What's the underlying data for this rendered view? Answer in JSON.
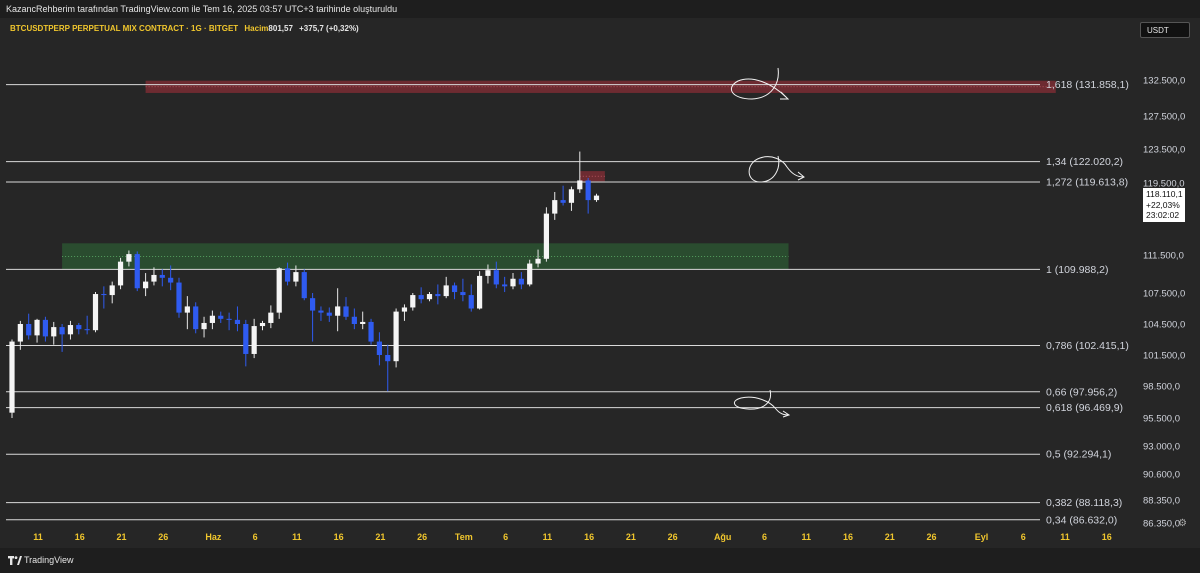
{
  "header": {
    "title": "KazancRehberim tarafından TradingView.com ile Tem 16, 2025 03:57 UTC+3 tarihinde oluşturuldu"
  },
  "legend": {
    "symbol": "BTCUSDTPERP PERPETUAL MIX CONTRACT · 1G · BITGET",
    "volume_label": "Hacim",
    "volume_value": "801,57",
    "change": "+375,7 (+0,32%)"
  },
  "currency": "USDT",
  "last_price": {
    "value": "118.110,1",
    "change_pct": "+22,03%",
    "countdown": "23:02:02"
  },
  "footer": {
    "brand": "TradingView"
  },
  "chart_data": {
    "type": "candlestick",
    "y_axis": {
      "ticks": [
        {
          "value": 132500,
          "label": "132.500,0"
        },
        {
          "value": 127500,
          "label": "127.500,0"
        },
        {
          "value": 123500,
          "label": "123.500,0"
        },
        {
          "value": 119500,
          "label": "119.500,0"
        },
        {
          "value": 111500,
          "label": "111.500,0"
        },
        {
          "value": 107500,
          "label": "107.500,0"
        },
        {
          "value": 104500,
          "label": "104.500,0"
        },
        {
          "value": 101500,
          "label": "101.500,0"
        },
        {
          "value": 98500,
          "label": "98.500,0"
        },
        {
          "value": 95500,
          "label": "95.500,0"
        },
        {
          "value": 93000,
          "label": "93.000,0"
        },
        {
          "value": 90600,
          "label": "90.600,0"
        },
        {
          "value": 88350,
          "label": "88.350,0"
        },
        {
          "value": 86350,
          "label": "86.350,0"
        }
      ]
    },
    "x_axis": {
      "ticks": [
        {
          "day": 0,
          "label": "11"
        },
        {
          "day": 5,
          "label": "16"
        },
        {
          "day": 10,
          "label": "21"
        },
        {
          "day": 15,
          "label": "26"
        },
        {
          "day": 21,
          "label": "Haz"
        },
        {
          "day": 26,
          "label": "6"
        },
        {
          "day": 31,
          "label": "11"
        },
        {
          "day": 36,
          "label": "16"
        },
        {
          "day": 41,
          "label": "21"
        },
        {
          "day": 46,
          "label": "26"
        },
        {
          "day": 51,
          "label": "Tem"
        },
        {
          "day": 56,
          "label": "6"
        },
        {
          "day": 61,
          "label": "11"
        },
        {
          "day": 66,
          "label": "16"
        },
        {
          "day": 71,
          "label": "21"
        },
        {
          "day": 76,
          "label": "26"
        },
        {
          "day": 82,
          "label": "Ağu"
        },
        {
          "day": 87,
          "label": "6"
        },
        {
          "day": 92,
          "label": "11"
        },
        {
          "day": 97,
          "label": "16"
        },
        {
          "day": 102,
          "label": "21"
        },
        {
          "day": 107,
          "label": "26"
        },
        {
          "day": 113,
          "label": "Eyl"
        },
        {
          "day": 118,
          "label": "6"
        },
        {
          "day": 123,
          "label": "11"
        },
        {
          "day": 128,
          "label": "16"
        }
      ]
    },
    "fib_levels": [
      {
        "value": 131858.1,
        "label": "1,618 (131.858,1)"
      },
      {
        "value": 122020.2,
        "label": "1,34 (122.020,2)"
      },
      {
        "value": 119613.8,
        "label": "1,272 (119.613,8)"
      },
      {
        "value": 109988.2,
        "label": "1 (109.988,2)"
      },
      {
        "value": 102415.1,
        "label": "0,786 (102.415,1)"
      },
      {
        "value": 97956.2,
        "label": "0,66 (97.956,2)"
      },
      {
        "value": 96469.9,
        "label": "0,618 (96.469,9)"
      },
      {
        "value": 92294.1,
        "label": "0,5 (92.294,1)"
      },
      {
        "value": 88118.3,
        "label": "0,382 (88.118,3)"
      },
      {
        "value": 86632.0,
        "label": "0,34 (86.632,0)"
      }
    ],
    "zones": [
      {
        "type": "resistance",
        "color": "#8b2e36",
        "day_start": 16,
        "day_end": 125,
        "low": 130700,
        "high": 132400
      },
      {
        "type": "resistance",
        "color": "#8b2e36",
        "day_start": 68,
        "day_end": 71,
        "low": 119700,
        "high": 120900
      },
      {
        "type": "support",
        "color": "#2e6b37",
        "day_start": 6,
        "day_end": 93,
        "low": 110000,
        "high": 112800
      }
    ],
    "candles": [
      [
        96000,
        103000,
        95500,
        102800
      ],
      [
        102800,
        104800,
        102000,
        104500
      ],
      [
        104500,
        105500,
        103000,
        103400
      ],
      [
        103400,
        105000,
        102700,
        104900
      ],
      [
        104900,
        105200,
        102800,
        103300
      ],
      [
        103300,
        104700,
        102500,
        104200
      ],
      [
        104200,
        104500,
        101800,
        103500
      ],
      [
        103500,
        104800,
        103000,
        104400
      ],
      [
        104400,
        104600,
        103500,
        104000
      ],
      [
        104000,
        105300,
        103500,
        103900
      ],
      [
        103900,
        107600,
        103700,
        107400
      ],
      [
        107400,
        108200,
        106000,
        107300
      ],
      [
        107300,
        108700,
        106500,
        108300
      ],
      [
        108300,
        111200,
        107900,
        110800
      ],
      [
        110800,
        112000,
        110300,
        111600
      ],
      [
        111600,
        111900,
        107700,
        108000
      ],
      [
        108000,
        109600,
        107200,
        108700
      ],
      [
        108700,
        110200,
        108300,
        109400
      ],
      [
        109400,
        110000,
        108200,
        109100
      ],
      [
        109100,
        110400,
        107800,
        108600
      ],
      [
        108600,
        109100,
        105100,
        105600
      ],
      [
        105600,
        107200,
        104000,
        106200
      ],
      [
        106200,
        106600,
        103600,
        104000
      ],
      [
        104000,
        105200,
        103200,
        104600
      ],
      [
        104600,
        105800,
        104000,
        105300
      ],
      [
        105300,
        105700,
        104600,
        105000
      ],
      [
        105000,
        105600,
        103900,
        104900
      ],
      [
        104900,
        106200,
        103800,
        104500
      ],
      [
        104500,
        104900,
        100400,
        101600
      ],
      [
        101600,
        105000,
        101200,
        104300
      ],
      [
        104300,
        104800,
        103900,
        104600
      ],
      [
        104600,
        106300,
        104100,
        105600
      ],
      [
        105600,
        110200,
        105000,
        110100
      ],
      [
        110100,
        110700,
        108300,
        108700
      ],
      [
        108700,
        110400,
        108200,
        109700
      ],
      [
        109700,
        110000,
        106800,
        107000
      ],
      [
        107000,
        107500,
        102800,
        105800
      ],
      [
        105800,
        106200,
        104800,
        105600
      ],
      [
        105600,
        106100,
        104700,
        105300
      ],
      [
        105300,
        108000,
        103800,
        106200
      ],
      [
        106200,
        107100,
        104900,
        105200
      ],
      [
        105200,
        106000,
        104000,
        104500
      ],
      [
        104500,
        105700,
        104000,
        104700
      ],
      [
        104700,
        105000,
        102500,
        102800
      ],
      [
        102800,
        103700,
        100500,
        101500
      ],
      [
        101500,
        102500,
        98000,
        100900
      ],
      [
        100900,
        106000,
        100300,
        105700
      ],
      [
        105700,
        106400,
        104800,
        106100
      ],
      [
        106100,
        107500,
        105800,
        107300
      ],
      [
        107300,
        108100,
        106500,
        106900
      ],
      [
        106900,
        107600,
        106700,
        107400
      ],
      [
        107400,
        108400,
        106400,
        107200
      ],
      [
        107200,
        109200,
        107000,
        108300
      ],
      [
        108300,
        108600,
        106900,
        107600
      ],
      [
        107600,
        109000,
        106700,
        107300
      ],
      [
        107300,
        108400,
        105700,
        106000
      ],
      [
        106000,
        109800,
        105900,
        109300
      ],
      [
        109300,
        110500,
        108500,
        109900
      ],
      [
        109900,
        110800,
        108000,
        108400
      ],
      [
        108400,
        109200,
        107600,
        108200
      ],
      [
        108200,
        109600,
        107900,
        109000
      ],
      [
        109000,
        109700,
        107900,
        108400
      ],
      [
        108400,
        111000,
        108200,
        110600
      ],
      [
        110600,
        112100,
        110200,
        111100
      ],
      [
        111100,
        116800,
        110800,
        116100
      ],
      [
        116100,
        118500,
        115400,
        117600
      ],
      [
        117600,
        119200,
        117000,
        117300
      ],
      [
        117300,
        119100,
        116400,
        118800
      ],
      [
        118800,
        123200,
        118400,
        119800
      ],
      [
        119800,
        120100,
        116100,
        117600
      ],
      [
        117600,
        118300,
        117400,
        118100
      ]
    ]
  }
}
